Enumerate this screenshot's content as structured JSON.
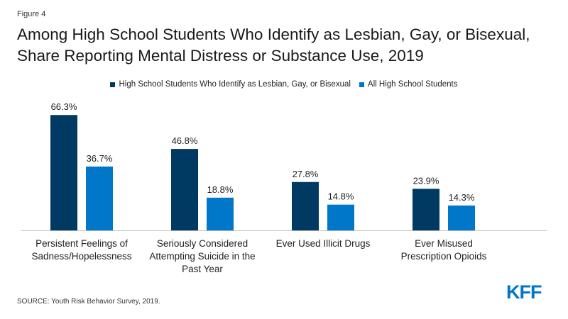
{
  "figure_label": "Figure 4",
  "source": "SOURCE: Youth Risk Behavior Survey, 2019.",
  "logo_text": "KFF",
  "colors": {
    "series_1": "#003a63",
    "series_2": "#0077c8",
    "logo": "#0077c8",
    "baseline": "#bfbfbf"
  },
  "chart_data": {
    "type": "bar",
    "title": "Among High School Students Who Identify as Lesbian, Gay, or Bisexual, Share Reporting Mental Distress or Substance Use, 2019",
    "xlabel": "",
    "ylabel": "",
    "ylim": [
      0,
      70
    ],
    "grid": false,
    "legend_position": "top-center",
    "categories": [
      [
        "Persistent Feelings of",
        "Sadness/Hopelessness"
      ],
      [
        "Seriously Considered",
        "Attempting Suicide in the",
        "Past Year"
      ],
      [
        "Ever Used Illicit Drugs"
      ],
      [
        "Ever Misused",
        "Prescription Opioids"
      ]
    ],
    "series": [
      {
        "name": "High School Students Who Identify as Lesbian, Gay, or Bisexual",
        "values": [
          66.3,
          46.8,
          27.8,
          23.9
        ],
        "labels": [
          "66.3%",
          "46.8%",
          "27.8%",
          "23.9%"
        ]
      },
      {
        "name": "All High School Students",
        "values": [
          36.7,
          18.8,
          14.8,
          14.3
        ],
        "labels": [
          "36.7%",
          "18.8%",
          "14.8%",
          "14.3%"
        ]
      }
    ]
  }
}
